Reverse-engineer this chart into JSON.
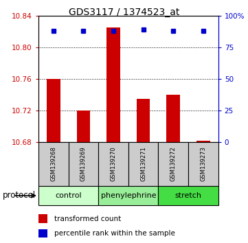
{
  "title": "GDS3117 / 1374523_at",
  "samples": [
    "GSM139268",
    "GSM139269",
    "GSM139270",
    "GSM139271",
    "GSM139272",
    "GSM139273"
  ],
  "transformed_counts": [
    10.76,
    10.72,
    10.825,
    10.735,
    10.74,
    10.682
  ],
  "percentile_ranks": [
    88,
    88,
    88,
    89,
    88,
    88
  ],
  "ylim_left": [
    10.68,
    10.84
  ],
  "ylim_right": [
    0,
    100
  ],
  "yticks_left": [
    10.68,
    10.72,
    10.76,
    10.8,
    10.84
  ],
  "yticks_right": [
    0,
    25,
    50,
    75,
    100
  ],
  "bar_color": "#cc0000",
  "dot_color": "#0000cc",
  "groups": [
    {
      "label": "control",
      "start": 0,
      "end": 1,
      "color": "#ccffcc"
    },
    {
      "label": "phenylephrine",
      "start": 2,
      "end": 3,
      "color": "#99ee99"
    },
    {
      "label": "stretch",
      "start": 4,
      "end": 5,
      "color": "#44dd44"
    }
  ],
  "protocol_label": "protocol",
  "legend_bar_label": "transformed count",
  "legend_dot_label": "percentile rank within the sample",
  "sample_box_color": "#cccccc",
  "sample_box_border": "#000000",
  "title_fontsize": 10,
  "tick_fontsize": 7.5,
  "sample_fontsize": 6,
  "group_fontsize": 8,
  "legend_fontsize": 7.5
}
